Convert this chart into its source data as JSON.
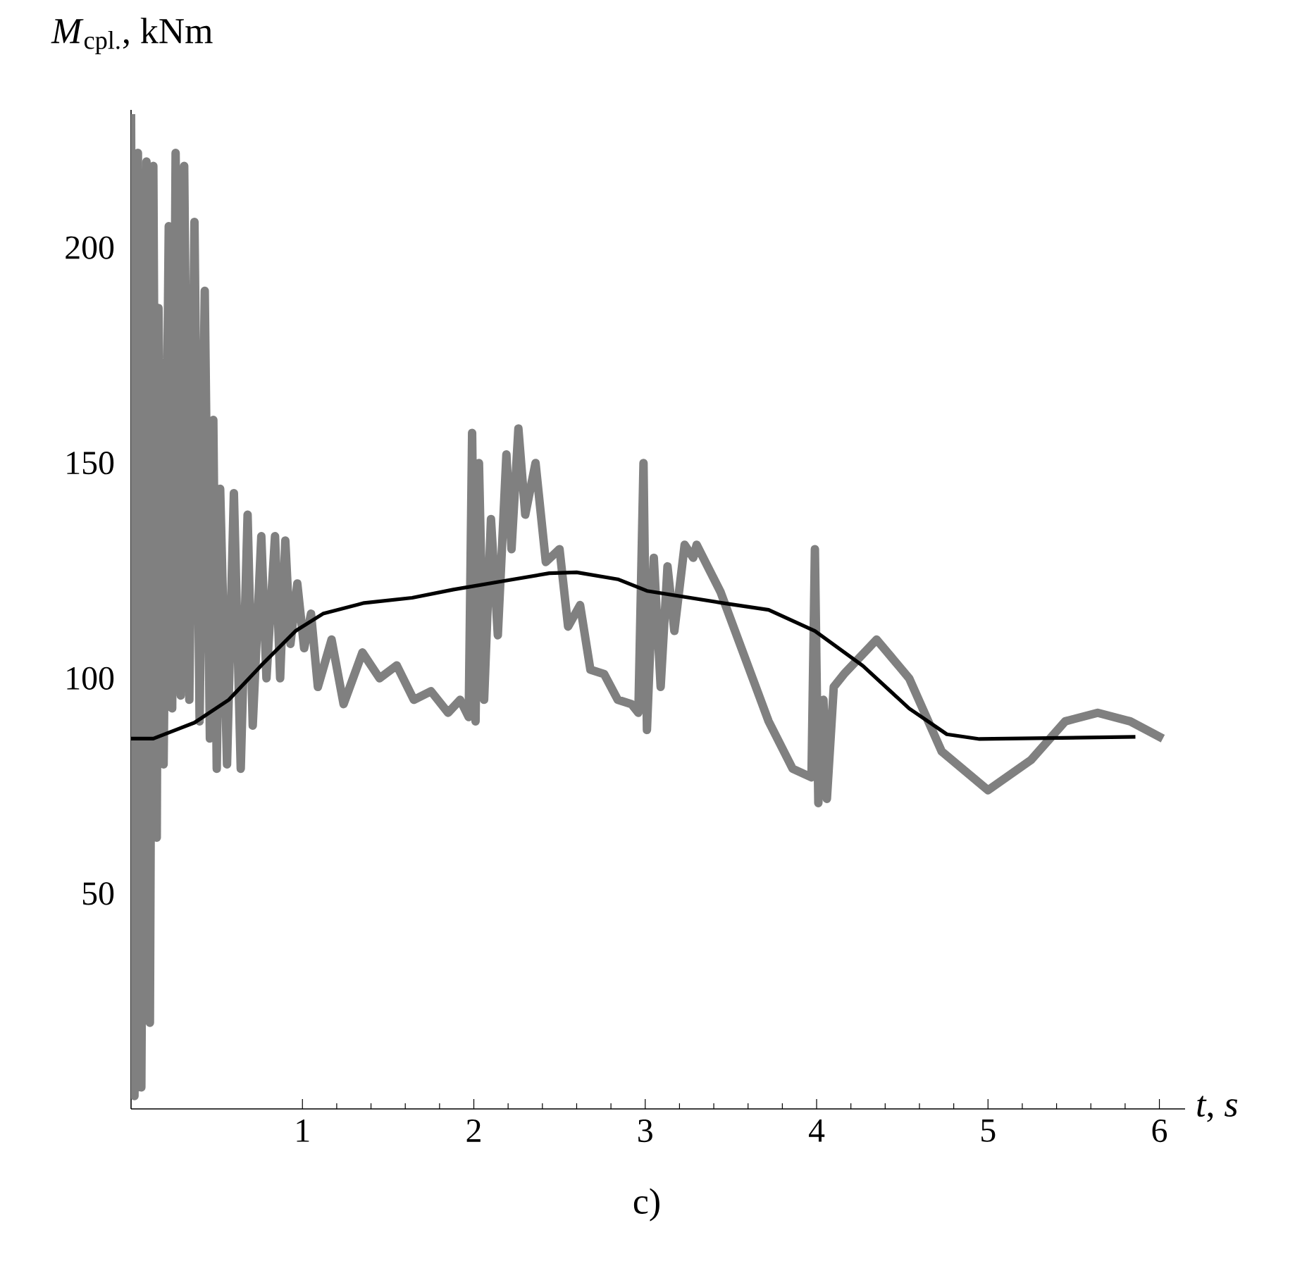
{
  "chart_data": {
    "type": "line",
    "xlabel": "*t*, *s*",
    "ylabel": "*M*$_{cpl.}$, kNm",
    "annotations": [
      "c)"
    ],
    "xlim": [
      0,
      6.15
    ],
    "ylim": [
      0,
      232
    ],
    "xticks": [
      1,
      2,
      3,
      4,
      5,
      6
    ],
    "yticks": [
      50,
      100,
      150,
      200
    ],
    "grid": false,
    "marker": "none",
    "line_style": "solid",
    "series": [
      {
        "color": "#808080",
        "x": [
          0.0,
          0.02,
          0.04,
          0.06,
          0.09,
          0.11,
          0.13,
          0.15,
          0.16,
          0.19,
          0.22,
          0.24,
          0.26,
          0.29,
          0.31,
          0.34,
          0.37,
          0.4,
          0.43,
          0.46,
          0.48,
          0.5,
          0.52,
          0.56,
          0.6,
          0.64,
          0.68,
          0.71,
          0.76,
          0.79,
          0.84,
          0.87,
          0.9,
          0.93,
          0.97,
          1.01,
          1.05,
          1.09,
          1.17,
          1.24,
          1.35,
          1.45,
          1.55,
          1.65,
          1.75,
          1.85,
          1.92,
          1.97,
          1.99,
          2.01,
          2.03,
          2.06,
          2.1,
          2.14,
          2.19,
          2.22,
          2.26,
          2.3,
          2.36,
          2.42,
          2.5,
          2.55,
          2.62,
          2.68,
          2.76,
          2.84,
          2.92,
          2.96,
          2.99,
          3.01,
          3.05,
          3.09,
          3.13,
          3.17,
          3.23,
          3.28,
          3.3,
          3.44,
          3.58,
          3.72,
          3.86,
          3.97,
          3.99,
          4.01,
          4.04,
          4.06,
          4.1,
          4.16,
          4.35,
          4.54,
          4.73,
          5.0,
          5.25,
          5.45,
          5.64,
          5.83,
          6.02
        ],
        "values": [
          231,
          3,
          222,
          5,
          220,
          20,
          219,
          63,
          186,
          80,
          205,
          93,
          222,
          96,
          219,
          95,
          206,
          90,
          190,
          86,
          160,
          79,
          144,
          80,
          143,
          79,
          138,
          89,
          133,
          100,
          133,
          100,
          132,
          108,
          122,
          107,
          115,
          98,
          109,
          94,
          106,
          100,
          103,
          95,
          97,
          92,
          95,
          91,
          157,
          90,
          150,
          95,
          137,
          110,
          152,
          130,
          158,
          138,
          150,
          127,
          130,
          112,
          117,
          102,
          101,
          95,
          94,
          92,
          150,
          88,
          128,
          98,
          126,
          111,
          131,
          128,
          131,
          120,
          105,
          90,
          79,
          77,
          130,
          71,
          95,
          72,
          98,
          101,
          109,
          100,
          83,
          74,
          81,
          90,
          92,
          90,
          86
        ]
      },
      {
        "color": "#000000",
        "x": [
          0,
          0.13,
          0.37,
          0.57,
          0.76,
          0.96,
          1.12,
          1.36,
          1.64,
          1.88,
          2.16,
          2.44,
          2.6,
          2.84,
          3.01,
          3.45,
          3.72,
          3.99,
          4.27,
          4.54,
          4.76,
          4.95,
          5.86
        ],
        "values": [
          86,
          86,
          89.7,
          95,
          103,
          111,
          115,
          117.5,
          118.7,
          120.6,
          122.5,
          124.4,
          124.6,
          123,
          120.3,
          117.5,
          115.9,
          111,
          102.9,
          93,
          87,
          85.9,
          86.4
        ]
      }
    ]
  }
}
